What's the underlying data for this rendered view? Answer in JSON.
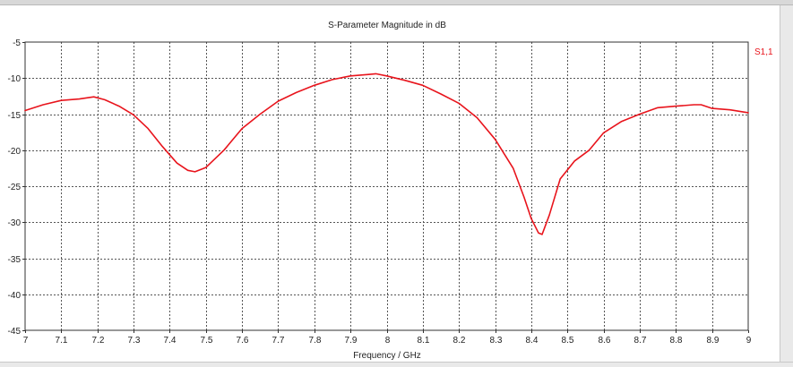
{
  "chart_data": {
    "type": "line",
    "title": "S-Parameter Magnitude in dB",
    "xlabel": "Frequency / GHz",
    "ylabel": "",
    "xlim": [
      7,
      9
    ],
    "ylim": [
      -45,
      -5
    ],
    "x_ticks": [
      "7",
      "7.1",
      "7.2",
      "7.3",
      "7.4",
      "7.5",
      "7.6",
      "7.7",
      "7.8",
      "7.9",
      "8",
      "8.1",
      "8.2",
      "8.3",
      "8.4",
      "8.5",
      "8.6",
      "8.7",
      "8.8",
      "8.9",
      "9"
    ],
    "y_ticks": [
      "-5",
      "-10",
      "-15",
      "-20",
      "-25",
      "-30",
      "-35",
      "-40",
      "-45"
    ],
    "grid": true,
    "legend_position": "top-right",
    "series": [
      {
        "name": "S1,1",
        "color": "#e8141c",
        "x": [
          7.0,
          7.05,
          7.1,
          7.15,
          7.19,
          7.22,
          7.26,
          7.3,
          7.34,
          7.38,
          7.42,
          7.45,
          7.47,
          7.5,
          7.55,
          7.6,
          7.65,
          7.7,
          7.75,
          7.8,
          7.85,
          7.9,
          7.95,
          7.97,
          8.0,
          8.05,
          8.1,
          8.15,
          8.2,
          8.25,
          8.3,
          8.35,
          8.38,
          8.4,
          8.42,
          8.43,
          8.45,
          8.48,
          8.52,
          8.56,
          8.6,
          8.65,
          8.7,
          8.75,
          8.8,
          8.85,
          8.87,
          8.9,
          8.95,
          9.0
        ],
        "values": [
          -14.5,
          -13.7,
          -13.1,
          -12.9,
          -12.6,
          -13.0,
          -13.9,
          -15.1,
          -17.0,
          -19.5,
          -21.8,
          -22.8,
          -23.0,
          -22.4,
          -20.0,
          -17.0,
          -15.0,
          -13.2,
          -12.0,
          -11.0,
          -10.2,
          -9.7,
          -9.5,
          -9.4,
          -9.7,
          -10.3,
          -11.0,
          -12.2,
          -13.5,
          -15.5,
          -18.5,
          -22.5,
          -26.5,
          -29.5,
          -31.5,
          -31.7,
          -29.0,
          -24.0,
          -21.5,
          -20.0,
          -17.6,
          -16.0,
          -15.0,
          -14.1,
          -13.9,
          -13.7,
          -13.7,
          -14.2,
          -14.4,
          -14.8
        ]
      }
    ]
  }
}
